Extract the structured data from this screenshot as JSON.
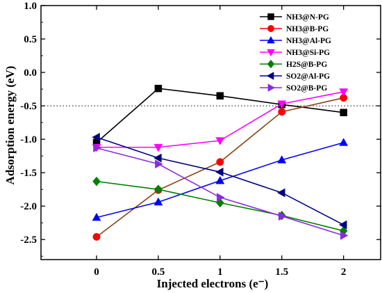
{
  "chart_data": {
    "type": "line",
    "xlabel": "Injected electrons (e⁻)",
    "ylabel": "Adsorption energy (eV)",
    "xlim": [
      -0.45,
      2.3
    ],
    "ylim": [
      -2.8,
      1.0
    ],
    "x_ticks": [
      0,
      0.5,
      1,
      1.5,
      2
    ],
    "x_tick_labels": [
      "0",
      "0.5",
      "1",
      "1.5",
      "2"
    ],
    "y_ticks": [
      1.0,
      0.5,
      0.0,
      -0.5,
      -1.0,
      -1.5,
      -2.0,
      -2.5
    ],
    "y_tick_labels": [
      "1.0",
      "0.5",
      "0.0",
      "-0.5",
      "-1.0",
      "-1.5",
      "-2.0",
      "-2.5"
    ],
    "reference_line": {
      "y": -0.5,
      "style": "dotted"
    },
    "legend_position": "top-right",
    "grid": false,
    "x": [
      0,
      0.5,
      1,
      1.5,
      2
    ],
    "series": [
      {
        "name": "NH3@N-PG",
        "color": "#000000",
        "marker": "square",
        "values": [
          -1.05,
          -0.24,
          -0.35,
          -0.48,
          -0.6
        ]
      },
      {
        "name": "NH3@B-PG",
        "color": "#ff0000",
        "marker": "circle",
        "values": [
          -2.46,
          -1.76,
          -1.34,
          -0.59,
          -0.38
        ],
        "line_color": "#8b4513"
      },
      {
        "name": "NH3@Al-PG",
        "color": "#0000ff",
        "marker": "triangle-up",
        "values": [
          -2.17,
          -1.94,
          -1.62,
          -1.31,
          -1.05
        ]
      },
      {
        "name": "NH3@Si-PG",
        "color": "#ff00ff",
        "marker": "triangle-down",
        "values": [
          -1.12,
          -1.12,
          -1.02,
          -0.47,
          -0.29
        ]
      },
      {
        "name": "H2S@B-PG",
        "color": "#008000",
        "marker": "diamond",
        "values": [
          -1.63,
          -1.75,
          -1.95,
          -2.14,
          -2.37
        ]
      },
      {
        "name": "SO2@Al-PG",
        "color": "#000080",
        "marker": "triangle-left",
        "values": [
          -0.97,
          -1.28,
          -1.49,
          -1.8,
          -2.28
        ]
      },
      {
        "name": "SO2@B-PG",
        "color": "#8a2be2",
        "marker": "triangle-right",
        "values": [
          -1.13,
          -1.37,
          -1.87,
          -2.15,
          -2.44
        ]
      }
    ]
  }
}
